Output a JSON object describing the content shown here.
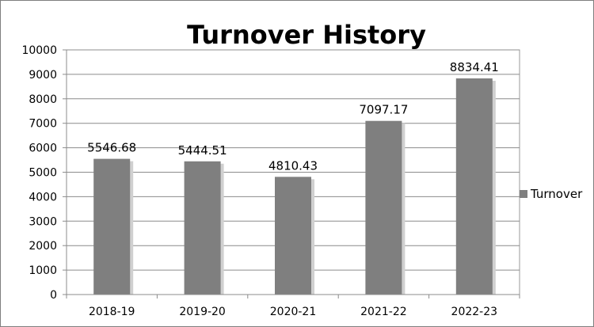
{
  "chart_data": {
    "type": "bar",
    "title": "Turnover History",
    "xlabel": "",
    "ylabel": "",
    "categories": [
      "2018-19",
      "2019-20",
      "2020-21",
      "2021-22",
      "2022-23"
    ],
    "series": [
      {
        "name": "Turnover",
        "values": [
          5546.68,
          5444.51,
          4810.43,
          7097.17,
          8834.41
        ],
        "color": "#7f7f7f"
      }
    ],
    "data_labels": [
      "5546.68",
      "5444.51",
      "4810.43",
      "7097.17",
      "8834.41"
    ],
    "ylim": [
      0,
      10000
    ],
    "yticks": [
      "0",
      "1000",
      "2000",
      "3000",
      "4000",
      "5000",
      "6000",
      "7000",
      "8000",
      "9000",
      "10000"
    ],
    "grid": true,
    "legend": {
      "position": "right",
      "label": "Turnover"
    }
  }
}
